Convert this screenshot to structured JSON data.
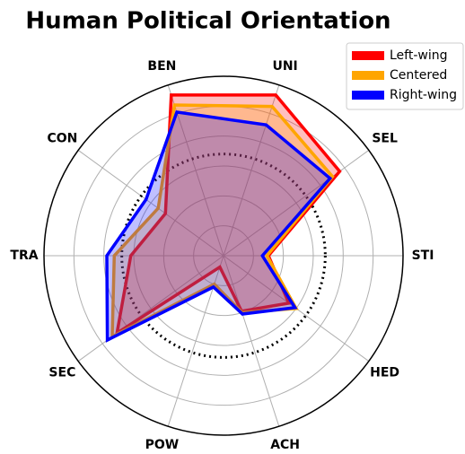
{
  "chart_data": {
    "type": "radar",
    "title": "Human Political Orientation",
    "categories": [
      "STI",
      "SEL",
      "UNI",
      "BEN",
      "CON",
      "TRA",
      "SEC",
      "POW",
      "ACH",
      "HED"
    ],
    "series": [
      {
        "name": "Left-wing",
        "color": "#ff0000",
        "values": [
          1.5,
          4.8,
          5.65,
          5.65,
          2.4,
          3.1,
          4.4,
          0.4,
          1.95,
          2.7
        ]
      },
      {
        "name": "Centered",
        "color": "#ffa500",
        "values": [
          1.45,
          4.5,
          5.25,
          5.3,
          2.7,
          3.65,
          4.6,
          1.0,
          2.0,
          3.0
        ]
      },
      {
        "name": "Right-wing",
        "color": "#0000ff",
        "values": [
          1.3,
          4.4,
          4.6,
          5.05,
          3.2,
          3.9,
          4.8,
          1.1,
          2.05,
          2.95
        ]
      }
    ],
    "ylim": [
      0,
      6
    ],
    "yticks": [
      1,
      2,
      3,
      4,
      5
    ],
    "grid": true,
    "reference": 3.4,
    "legend": "upper right"
  }
}
